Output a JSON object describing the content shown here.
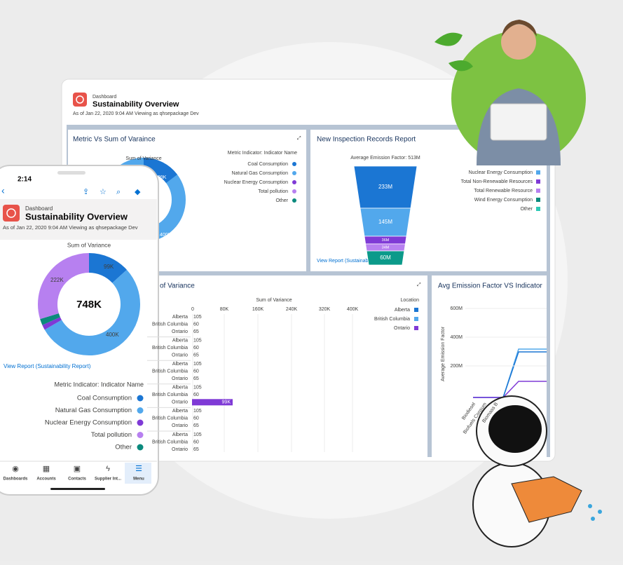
{
  "desktop": {
    "header": {
      "kicker": "Dashboard",
      "title": "Sustainability Overview",
      "subtitle": "As of Jan 22, 2020 9:04 AM Viewing as qhsepackage Dev"
    },
    "card1": {
      "title": "Metric Vs Sum of Varaince",
      "chart_title": "Sum of Variance",
      "labels": [
        "99K",
        "400K"
      ],
      "legend_title": "Metric Indicator: Indicator Name",
      "legend": [
        "Coal Consumption",
        "Natural Gas Consumption",
        "Nuclear Energy Consumption",
        "Total pollution",
        "Other"
      ]
    },
    "card2": {
      "title": "New Inspection Records Report",
      "chart_title": "Average Emission Factor: 513M",
      "funnel": [
        "233M",
        "145M",
        "36M",
        "34M",
        "60M"
      ],
      "legend": [
        "Nuclear Energy Consumption",
        "Total Non-Renewable Resources",
        "Total Renewable Resource",
        "Wind Energy Consumption",
        "Other"
      ],
      "link": "View Report (Sustainability Report)"
    },
    "card3": {
      "title": "of Variance",
      "axis_title": "Sum of Variance",
      "ticks": [
        "0",
        "80K",
        "160K",
        "240K",
        "320K",
        "400K"
      ],
      "legend_title": "Location",
      "legend": [
        "Alberta",
        "British Columbia",
        "Ontario"
      ],
      "groups": [
        [
          [
            "Alberta",
            "105"
          ],
          [
            "British Columbia",
            "60"
          ],
          [
            "Ontario",
            "65"
          ]
        ],
        [
          [
            "Alberta",
            "105"
          ],
          [
            "British Columbia",
            "60"
          ],
          [
            "Ontario",
            "65"
          ]
        ],
        [
          [
            "Alberta",
            "105"
          ],
          [
            "British Columbia",
            "60"
          ],
          [
            "Ontario",
            "65"
          ]
        ],
        [
          [
            "Alberta",
            "105"
          ],
          [
            "British Columbia",
            "60"
          ],
          [
            "Ontario",
            "99K"
          ]
        ],
        [
          [
            "Alberta",
            "105"
          ],
          [
            "British Columbia",
            "60"
          ],
          [
            "Ontario",
            "65"
          ]
        ],
        [
          [
            "Alberta",
            "105"
          ],
          [
            "British Columbia",
            "60"
          ],
          [
            "Ontario",
            "65"
          ]
        ]
      ]
    },
    "card4": {
      "title": "Avg Emission Factor VS Indicator",
      "yticks": [
        "600M",
        "400M",
        "200M"
      ],
      "ylabel": "Average Emission Factor",
      "xlabels": [
        "Biodiesel",
        "Biofuels Consum",
        "Biomass B"
      ]
    }
  },
  "phone": {
    "time": "2:14",
    "header": {
      "kicker": "Dashboard",
      "title": "Sustainability Overview",
      "subtitle": "As of Jan 22, 2020 9:04 AM Viewing as qhsepackage Dev"
    },
    "chart_title": "Sum of Variance",
    "total": "748K",
    "donut_labels": [
      "99K",
      "400K",
      "222K"
    ],
    "link": "View Report (Sustainability Report)",
    "legend_title": "Metric Indicator: Indicator Name",
    "legend": [
      "Coal Consumption",
      "Natural Gas Consumption",
      "Nuclear Energy Consumption",
      "Total pollution",
      "Other"
    ],
    "tabs": [
      "Dashboards",
      "Accounts",
      "Contacts",
      "Supplier Int...",
      "Menu"
    ]
  }
}
